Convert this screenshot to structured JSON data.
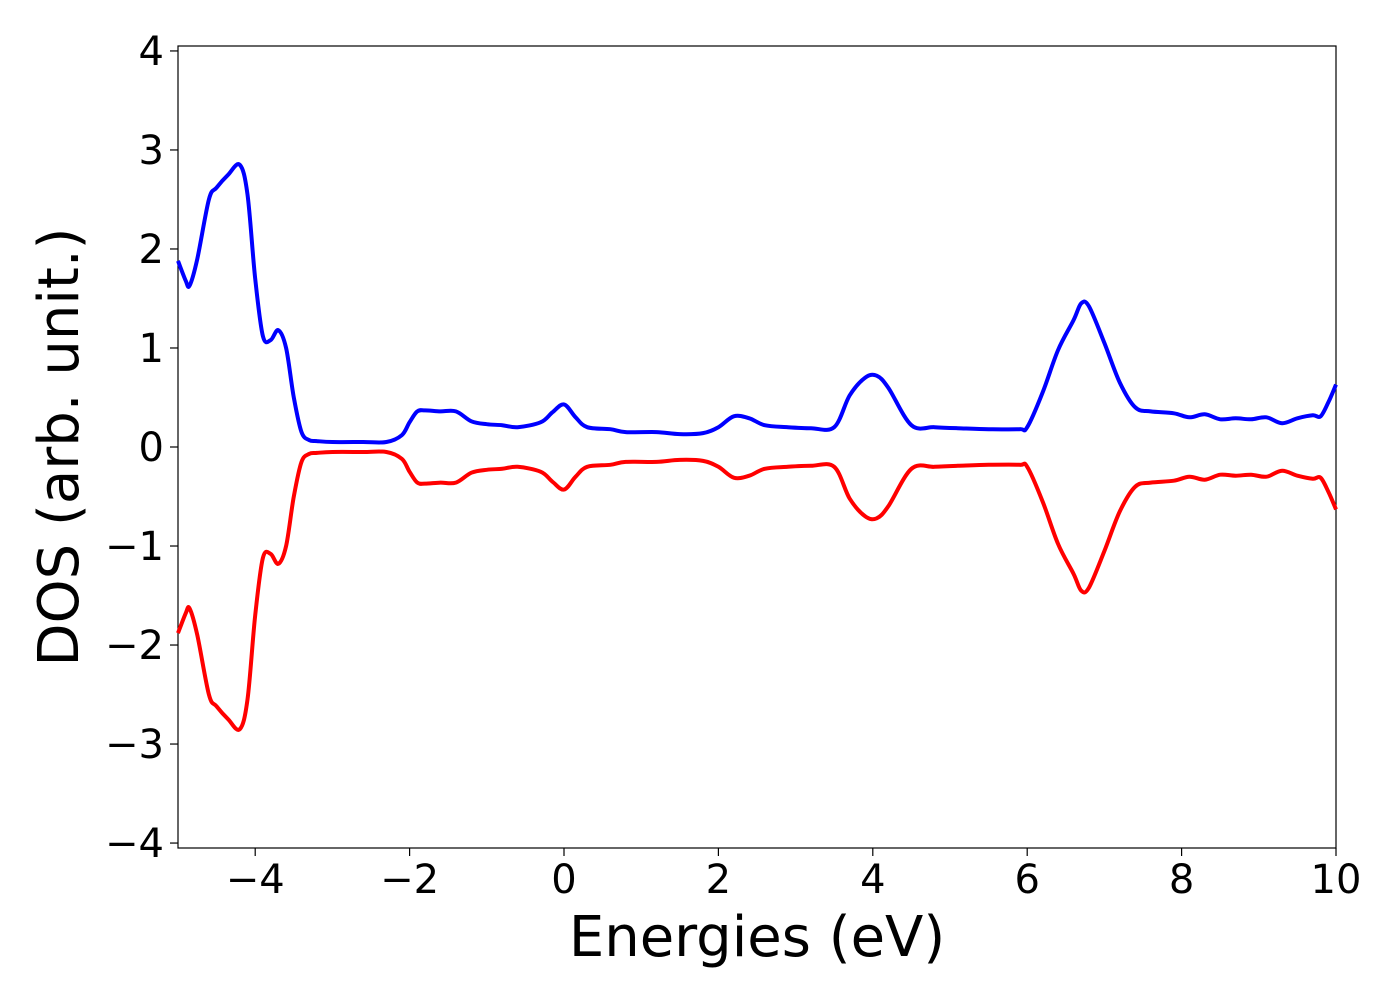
{
  "chart_data": {
    "type": "line",
    "title": "",
    "xlabel": "Energies (eV)",
    "ylabel": "DOS (arb. unit.)",
    "xlim": [
      -5,
      10
    ],
    "ylim": [
      -4.05,
      4.05
    ],
    "xticks": [
      -4,
      -2,
      0,
      2,
      4,
      6,
      8,
      10
    ],
    "yticks": [
      -4,
      -3,
      -2,
      -1,
      0,
      1,
      2,
      3,
      4
    ],
    "xtick_labels": [
      "−4",
      "−2",
      "0",
      "2",
      "4",
      "6",
      "8",
      "10"
    ],
    "ytick_labels": [
      "−4",
      "−3",
      "−2",
      "−1",
      "0",
      "1",
      "2",
      "3",
      "4"
    ],
    "grid": false,
    "legend": "none",
    "series": [
      {
        "color": "#0000ff",
        "x": [
          -5.0,
          -4.9,
          -4.85,
          -4.75,
          -4.6,
          -4.5,
          -4.35,
          -4.2,
          -4.1,
          -4.0,
          -3.9,
          -3.8,
          -3.7,
          -3.6,
          -3.5,
          -3.4,
          -3.3,
          -3.2,
          -3.0,
          -2.6,
          -2.3,
          -2.1,
          -2.0,
          -1.9,
          -1.8,
          -1.6,
          -1.4,
          -1.2,
          -1.0,
          -0.8,
          -0.6,
          -0.3,
          -0.15,
          0.0,
          0.15,
          0.3,
          0.6,
          0.8,
          1.2,
          1.5,
          1.8,
          2.0,
          2.2,
          2.4,
          2.6,
          2.9,
          3.2,
          3.5,
          3.7,
          3.9,
          4.05,
          4.2,
          4.5,
          4.8,
          5.1,
          5.5,
          5.9,
          6.0,
          6.2,
          6.4,
          6.6,
          6.7,
          6.8,
          7.0,
          7.2,
          7.4,
          7.6,
          7.9,
          8.1,
          8.3,
          8.5,
          8.7,
          8.9,
          9.1,
          9.3,
          9.5,
          9.7,
          9.8,
          9.9,
          10.0
        ],
        "y": [
          1.88,
          1.68,
          1.63,
          1.9,
          2.5,
          2.62,
          2.75,
          2.85,
          2.55,
          1.7,
          1.12,
          1.08,
          1.18,
          1.0,
          0.5,
          0.15,
          0.07,
          0.06,
          0.05,
          0.05,
          0.05,
          0.12,
          0.25,
          0.36,
          0.37,
          0.36,
          0.36,
          0.26,
          0.23,
          0.22,
          0.2,
          0.25,
          0.35,
          0.43,
          0.3,
          0.2,
          0.18,
          0.15,
          0.15,
          0.13,
          0.14,
          0.2,
          0.31,
          0.29,
          0.22,
          0.2,
          0.19,
          0.2,
          0.52,
          0.7,
          0.72,
          0.6,
          0.22,
          0.2,
          0.19,
          0.18,
          0.18,
          0.2,
          0.55,
          0.98,
          1.28,
          1.45,
          1.42,
          1.05,
          0.65,
          0.4,
          0.36,
          0.34,
          0.3,
          0.33,
          0.28,
          0.29,
          0.28,
          0.3,
          0.24,
          0.29,
          0.32,
          0.31,
          0.45,
          0.63
        ]
      },
      {
        "color": "#ff0000",
        "x": [
          -5.0,
          -4.9,
          -4.85,
          -4.75,
          -4.6,
          -4.5,
          -4.35,
          -4.2,
          -4.1,
          -4.0,
          -3.9,
          -3.8,
          -3.7,
          -3.6,
          -3.5,
          -3.4,
          -3.3,
          -3.2,
          -3.0,
          -2.6,
          -2.3,
          -2.1,
          -2.0,
          -1.9,
          -1.8,
          -1.6,
          -1.4,
          -1.2,
          -1.0,
          -0.8,
          -0.6,
          -0.3,
          -0.15,
          0.0,
          0.15,
          0.3,
          0.6,
          0.8,
          1.2,
          1.5,
          1.8,
          2.0,
          2.2,
          2.4,
          2.6,
          2.9,
          3.2,
          3.5,
          3.7,
          3.9,
          4.05,
          4.2,
          4.5,
          4.8,
          5.1,
          5.5,
          5.9,
          6.0,
          6.2,
          6.4,
          6.6,
          6.7,
          6.8,
          7.0,
          7.2,
          7.4,
          7.6,
          7.9,
          8.1,
          8.3,
          8.5,
          8.7,
          8.9,
          9.1,
          9.3,
          9.5,
          9.7,
          9.8,
          9.9,
          10.0
        ],
        "y": [
          -1.88,
          -1.68,
          -1.63,
          -1.9,
          -2.5,
          -2.62,
          -2.75,
          -2.85,
          -2.55,
          -1.7,
          -1.12,
          -1.08,
          -1.18,
          -1.0,
          -0.5,
          -0.15,
          -0.07,
          -0.06,
          -0.05,
          -0.05,
          -0.05,
          -0.12,
          -0.25,
          -0.36,
          -0.37,
          -0.36,
          -0.36,
          -0.26,
          -0.23,
          -0.22,
          -0.2,
          -0.25,
          -0.35,
          -0.43,
          -0.3,
          -0.2,
          -0.18,
          -0.15,
          -0.15,
          -0.13,
          -0.14,
          -0.2,
          -0.31,
          -0.29,
          -0.22,
          -0.2,
          -0.19,
          -0.2,
          -0.52,
          -0.7,
          -0.72,
          -0.6,
          -0.22,
          -0.2,
          -0.19,
          -0.18,
          -0.18,
          -0.2,
          -0.55,
          -0.98,
          -1.28,
          -1.45,
          -1.42,
          -1.05,
          -0.65,
          -0.4,
          -0.36,
          -0.34,
          -0.3,
          -0.33,
          -0.28,
          -0.29,
          -0.28,
          -0.3,
          -0.24,
          -0.29,
          -0.32,
          -0.31,
          -0.45,
          -0.63
        ]
      }
    ]
  }
}
